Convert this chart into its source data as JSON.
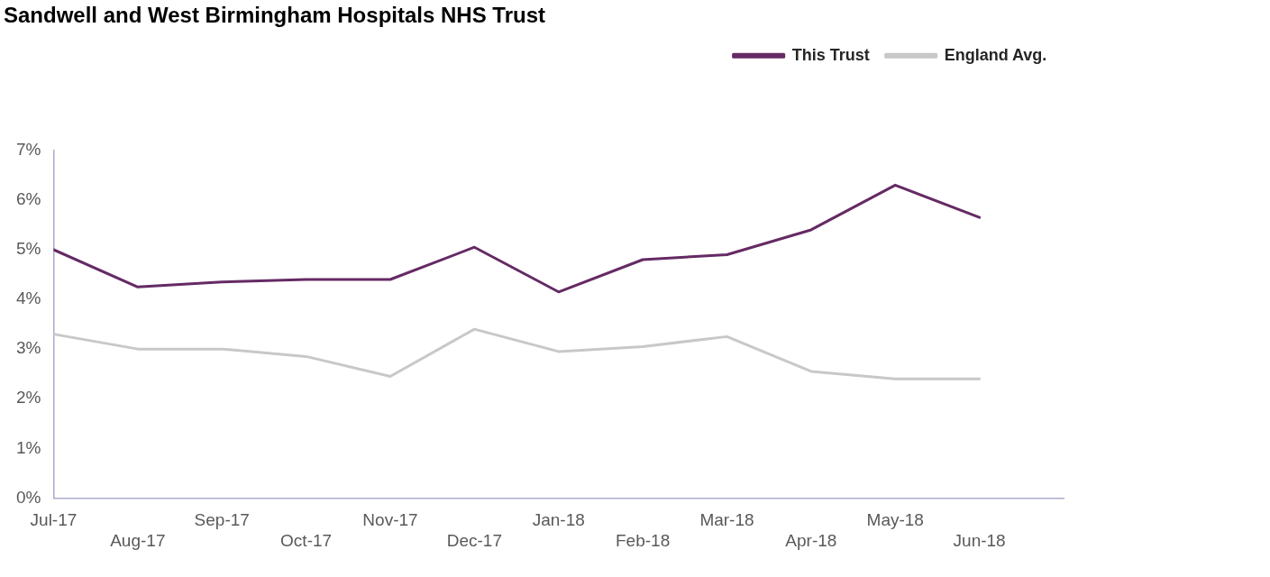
{
  "chart_data": {
    "type": "line",
    "title": "Sandwell and West Birmingham Hospitals NHS Trust",
    "categories": [
      "Jul-17",
      "Aug-17",
      "Sep-17",
      "Oct-17",
      "Nov-17",
      "Dec-17",
      "Jan-18",
      "Feb-18",
      "Mar-18",
      "Apr-18",
      "May-18",
      "Jun-18"
    ],
    "series": [
      {
        "name": "This Trust",
        "color": "#652a64",
        "values": [
          5.0,
          4.25,
          4.35,
          4.4,
          4.4,
          5.05,
          4.15,
          4.8,
          4.9,
          5.4,
          6.3,
          5.65
        ]
      },
      {
        "name": "England Avg.",
        "color": "#c8c8c8",
        "values": [
          3.3,
          3.0,
          3.0,
          2.85,
          2.45,
          3.4,
          2.95,
          3.05,
          3.25,
          2.55,
          2.4,
          2.4
        ]
      }
    ],
    "ylim": [
      0,
      7
    ],
    "yticks": [
      {
        "value": 0,
        "label": "0%"
      },
      {
        "value": 1,
        "label": "1%"
      },
      {
        "value": 2,
        "label": "2%"
      },
      {
        "value": 3,
        "label": "3%"
      },
      {
        "value": 4,
        "label": "4%"
      },
      {
        "value": 5,
        "label": "5%"
      },
      {
        "value": 6,
        "label": "6%"
      },
      {
        "value": 7,
        "label": "7%"
      }
    ],
    "grid": false,
    "legend": "top right",
    "marker": "none",
    "line_style": "solid"
  }
}
